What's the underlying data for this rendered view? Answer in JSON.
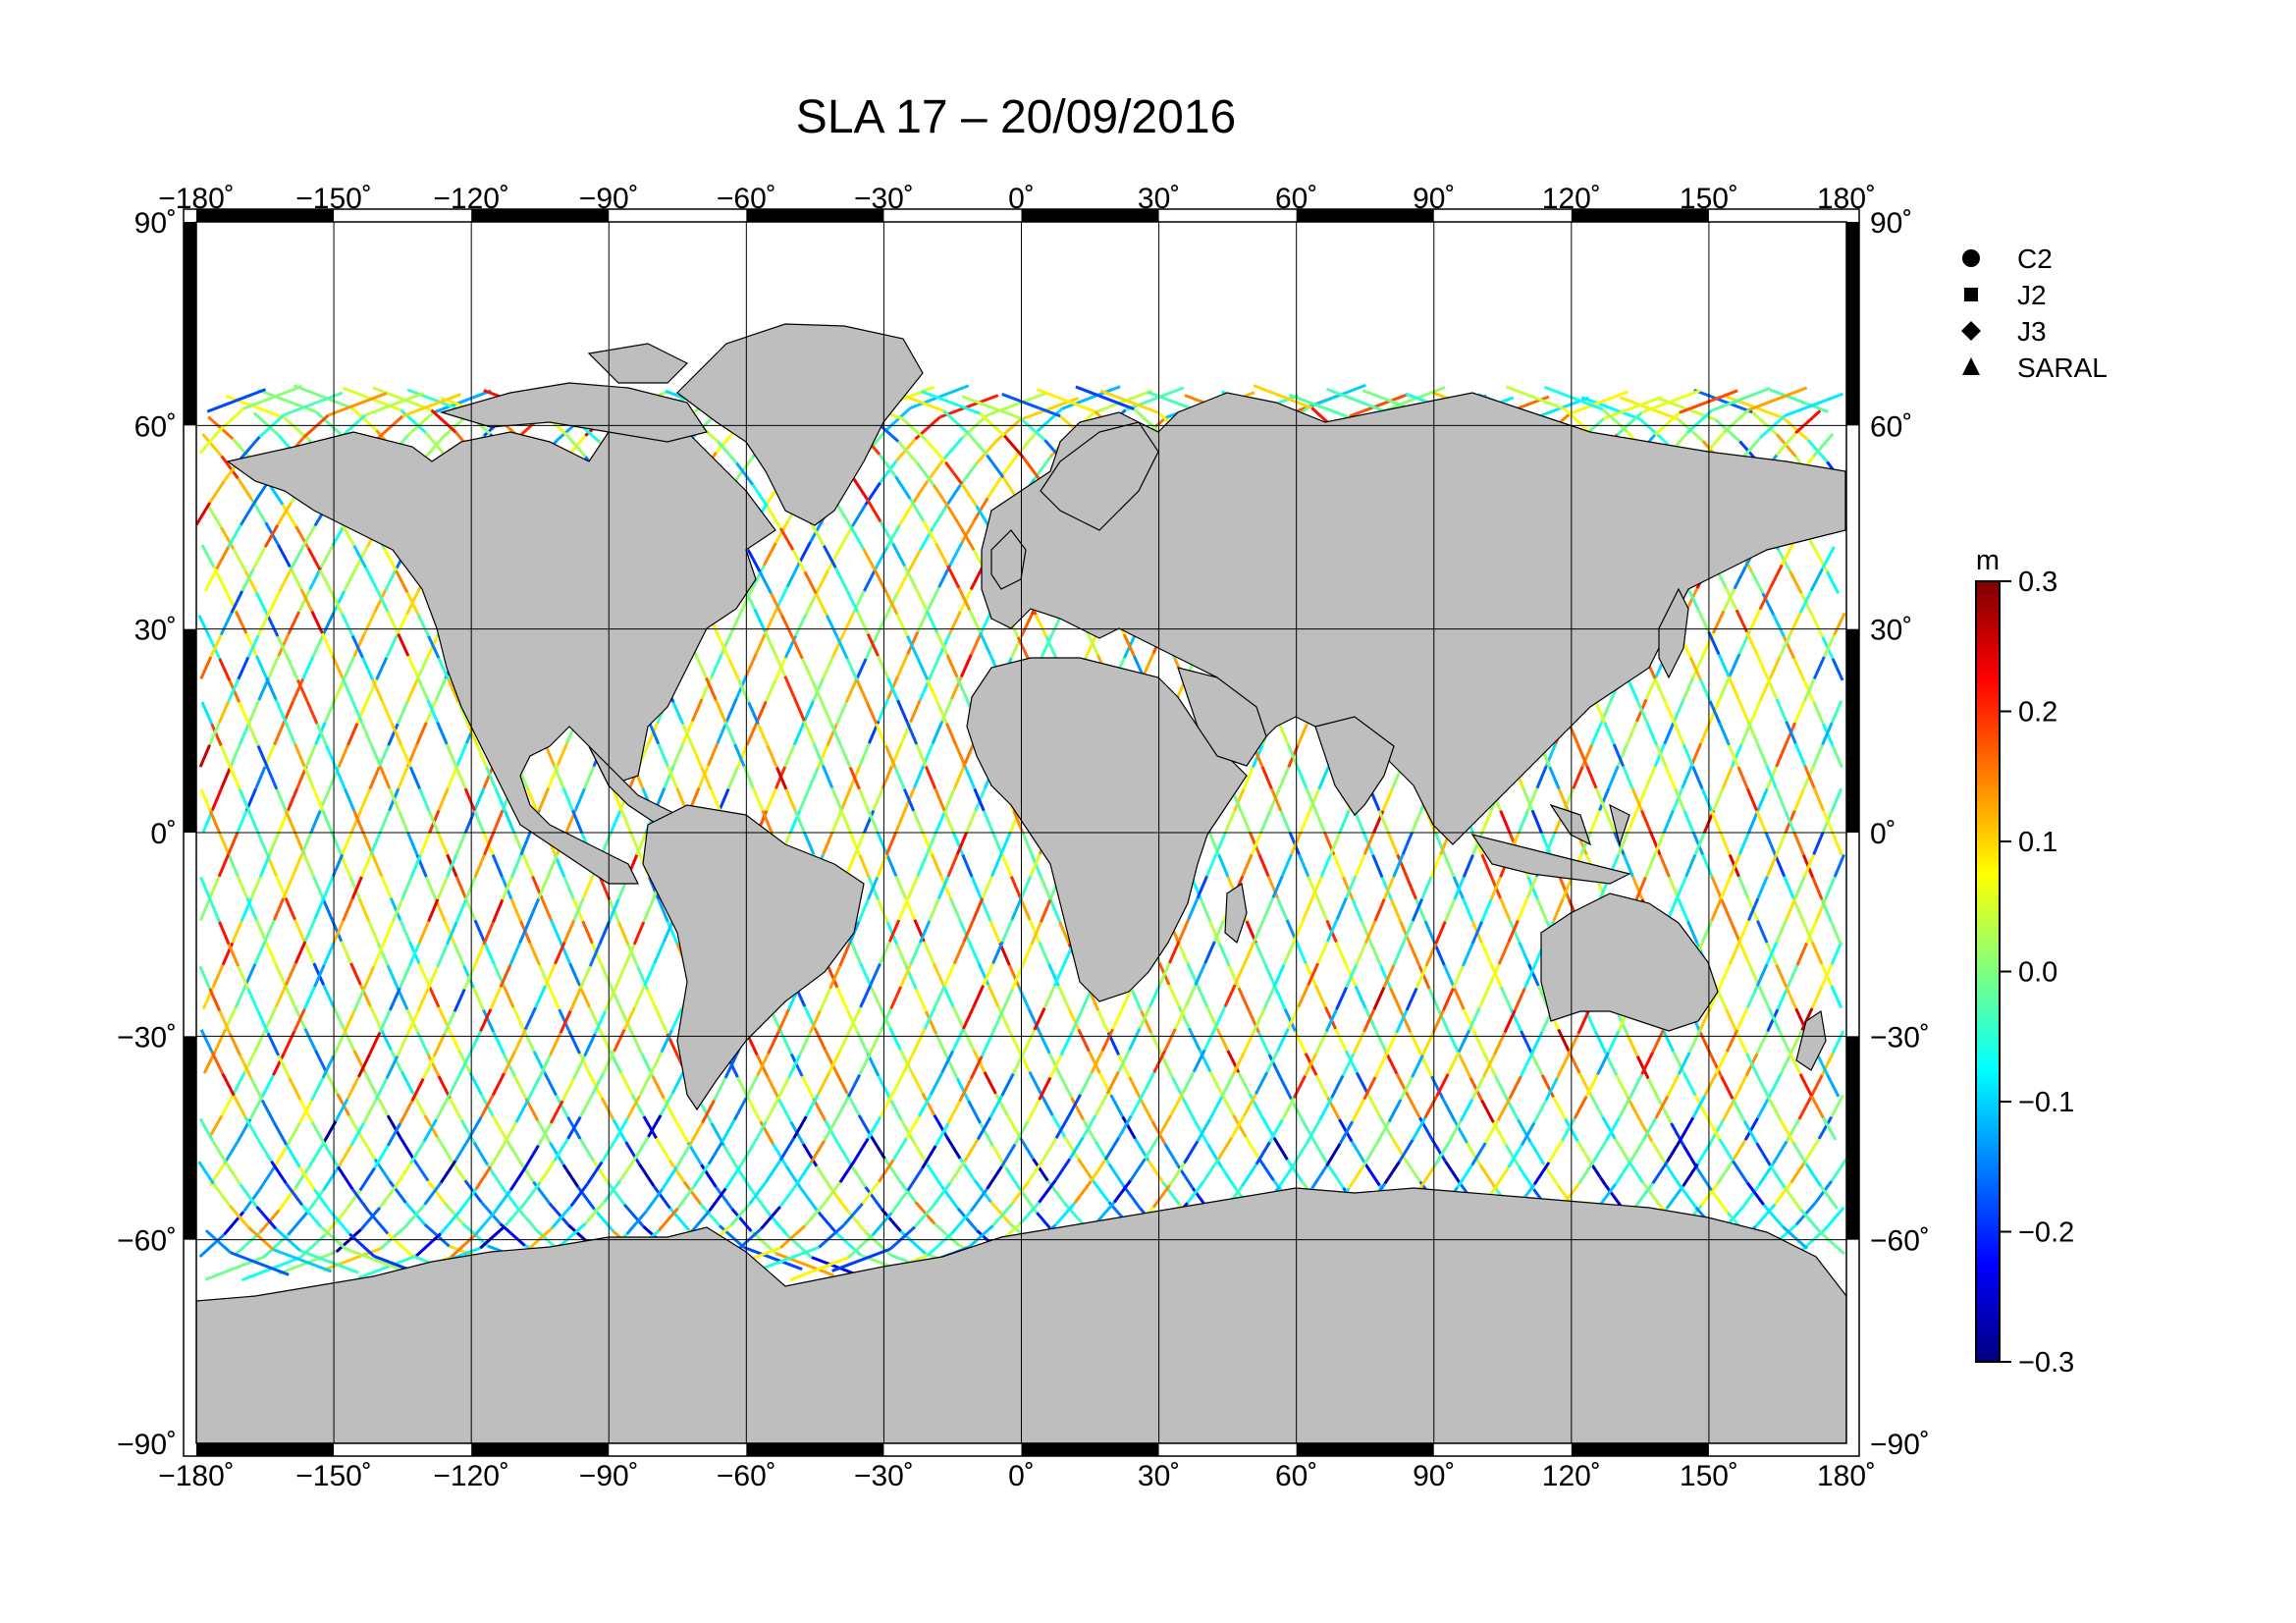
{
  "title": "SLA 17 – 20/09/2016",
  "map": {
    "lon_ticks": [
      "−180˚",
      "−150˚",
      "−120˚",
      "−90˚",
      "−60˚",
      "−30˚",
      "0˚",
      "30˚",
      "60˚",
      "90˚",
      "120˚",
      "150˚",
      "180˚"
    ],
    "lat_ticks_left": [
      "90˚",
      "60˚",
      "30˚",
      "0˚",
      "−30˚",
      "−60˚",
      "−90˚"
    ],
    "lat_ticks_right": [
      "90˚",
      "60˚",
      "30˚",
      "0˚",
      "−30˚",
      "−60˚",
      "−90˚"
    ],
    "lon_range": [
      -180,
      180
    ],
    "lat_range": [
      -90,
      90
    ],
    "grid_lon_step": 30,
    "grid_lat_step": 30,
    "land_color": "#bebebe",
    "ocean_color": "#ffffff"
  },
  "legend": {
    "items": [
      {
        "label": "C2",
        "icon": "circle-icon"
      },
      {
        "label": "J2",
        "icon": "square-icon"
      },
      {
        "label": "J3",
        "icon": "diamond-icon"
      },
      {
        "label": "SARAL",
        "icon": "triangle-icon"
      }
    ]
  },
  "colorbar": {
    "unit": "m",
    "range": [
      -0.3,
      0.3
    ],
    "tick_labels": [
      "0.3",
      "0.2",
      "0.1",
      "0.0",
      "−0.1",
      "−0.2",
      "−0.3"
    ],
    "colors": [
      "#00007f",
      "#0000ff",
      "#007fff",
      "#00ffff",
      "#7fff7f",
      "#ffff00",
      "#ff7f00",
      "#ff0000",
      "#7f0000"
    ]
  }
}
